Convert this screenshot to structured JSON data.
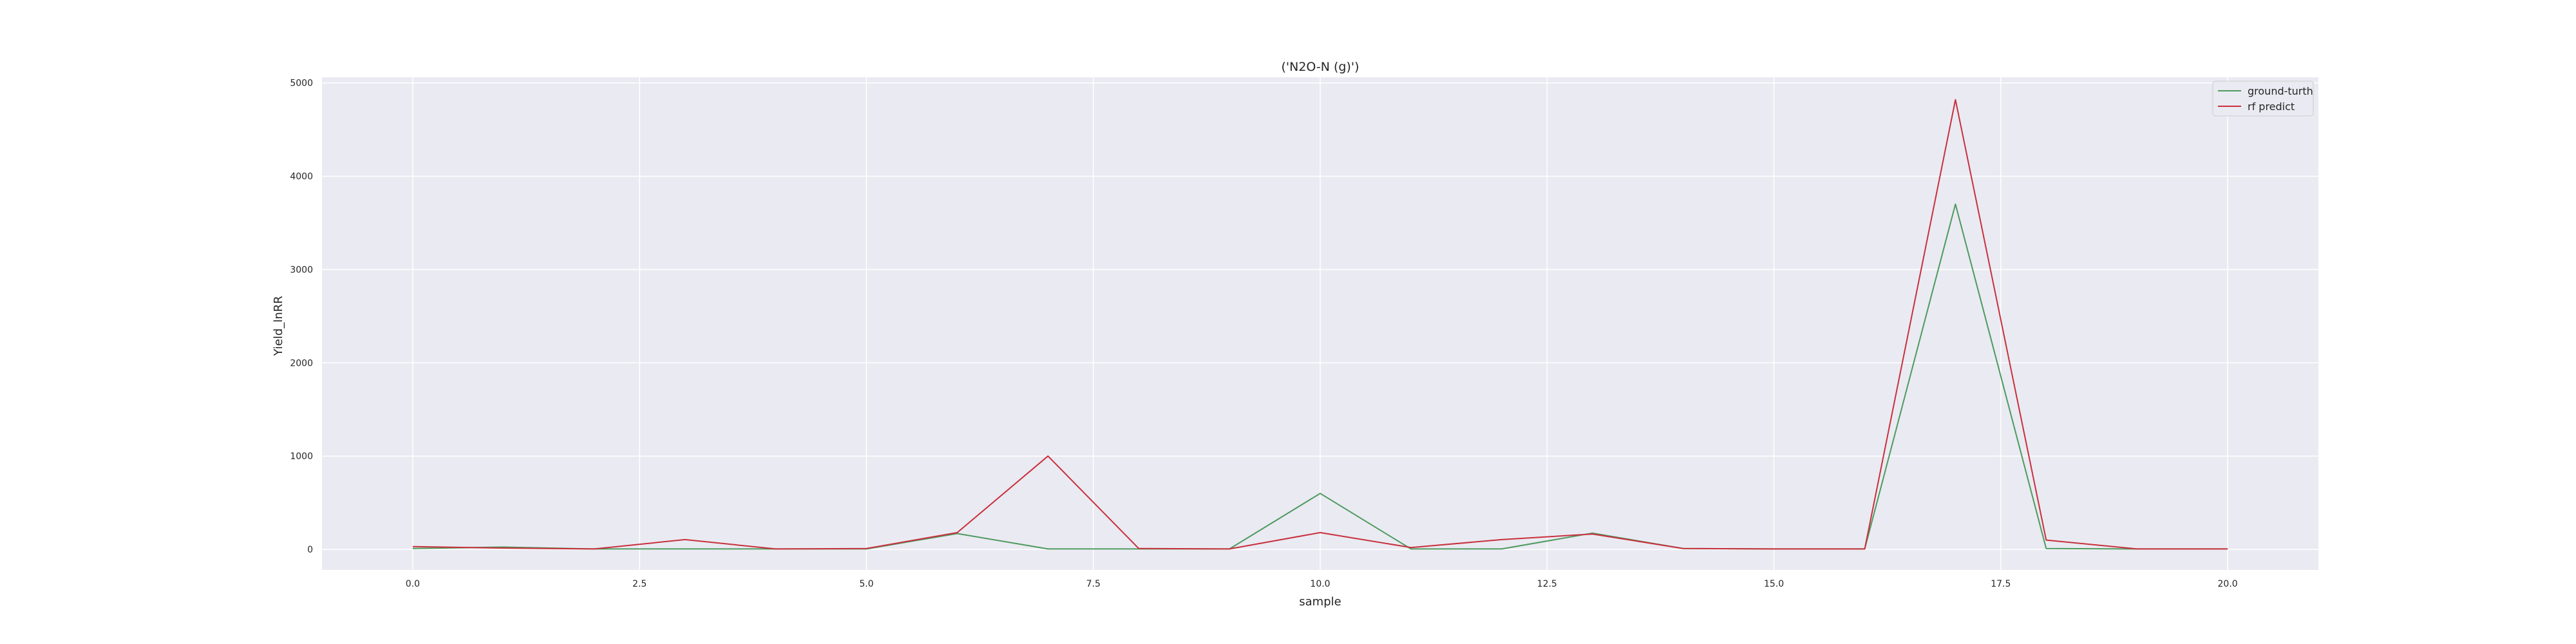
{
  "chart_data": {
    "type": "line",
    "title": "('N2O-N (g)')",
    "xlabel": "sample",
    "ylabel": "Yield_lnRR",
    "xlim": [
      -1,
      21
    ],
    "ylim": [
      -220,
      5060
    ],
    "xticks": [
      0.0,
      2.5,
      5.0,
      7.5,
      10.0,
      12.5,
      15.0,
      17.5,
      20.0
    ],
    "xtick_labels": [
      "0.0",
      "2.5",
      "5.0",
      "7.5",
      "10.0",
      "12.5",
      "15.0",
      "17.5",
      "20.0"
    ],
    "yticks": [
      0,
      1000,
      2000,
      3000,
      4000,
      5000
    ],
    "ytick_labels": [
      "0",
      "1000",
      "2000",
      "3000",
      "4000",
      "5000"
    ],
    "grid": true,
    "legend_position": "top-right",
    "x": [
      0,
      1,
      2,
      3,
      4,
      5,
      6,
      7,
      8,
      9,
      10,
      11,
      12,
      13,
      14,
      15,
      16,
      17,
      18,
      19,
      20
    ],
    "series": [
      {
        "name": "ground-turth",
        "color": "#4c9a5e",
        "values": [
          10,
          25,
          5,
          5,
          5,
          5,
          170,
          5,
          5,
          5,
          600,
          5,
          5,
          175,
          10,
          5,
          5,
          3700,
          10,
          5,
          5
        ]
      },
      {
        "name": "rf predict",
        "color": "#c8303c",
        "values": [
          30,
          15,
          5,
          105,
          5,
          10,
          180,
          1000,
          10,
          5,
          180,
          20,
          105,
          165,
          10,
          5,
          5,
          4820,
          100,
          5,
          5
        ]
      }
    ],
    "colors": {
      "background": "#eaeaf2",
      "grid": "#ffffff"
    }
  }
}
